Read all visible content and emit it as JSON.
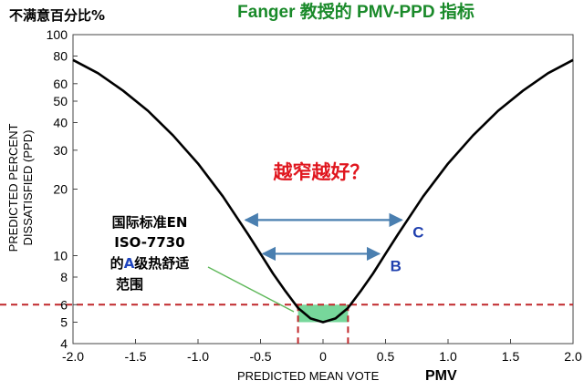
{
  "chart_data": {
    "type": "line",
    "title": "Fanger 教授的 PMV-PPD 指标",
    "corner_label": "不满意百分比%",
    "xlabel": "PREDICTED MEAN VOTE",
    "xlabel_suffix": "PMV",
    "ylabel": "PREDICTED PERCENT DISSATISFIED (PPD)",
    "ylabel_lines": [
      "PREDICTED PERCENT",
      "DISSATISFIED (PPD)"
    ],
    "xlim": [
      -2.0,
      2.0
    ],
    "ylim": [
      4,
      100
    ],
    "y_scale": "log",
    "x_ticks": [
      "-2.0",
      "-1.5",
      "-1.0",
      "-0.5",
      "0",
      "0.5",
      "1.0",
      "1.5",
      "2.0"
    ],
    "x_tick_values": [
      -2.0,
      -1.5,
      -1.0,
      -0.5,
      0,
      0.5,
      1.0,
      1.5,
      2.0
    ],
    "y_ticks": [
      "4",
      "5",
      "6",
      "8",
      "10",
      "20",
      "30",
      "40",
      "50",
      "60",
      "80",
      "100"
    ],
    "y_tick_values": [
      4,
      5,
      6,
      8,
      10,
      20,
      30,
      40,
      50,
      60,
      80,
      100
    ],
    "series": [
      {
        "x": [
          -2.0,
          -1.8,
          -1.6,
          -1.4,
          -1.2,
          -1.0,
          -0.8,
          -0.6,
          -0.5,
          -0.4,
          -0.3,
          -0.2,
          -0.1,
          0,
          0.1,
          0.2,
          0.3,
          0.4,
          0.5,
          0.6,
          0.8,
          1.0,
          1.2,
          1.4,
          1.6,
          1.8,
          2.0
        ],
        "y": [
          76.8,
          66.9,
          55.8,
          45.2,
          35.0,
          26.1,
          18.5,
          12.5,
          10.2,
          8.3,
          6.9,
          5.8,
          5.2,
          5.0,
          5.2,
          5.8,
          6.9,
          8.3,
          10.2,
          12.5,
          18.5,
          26.1,
          35.0,
          45.2,
          55.8,
          66.9,
          76.8
        ]
      }
    ],
    "reference_line": {
      "y": 6,
      "color": "#c0282b",
      "style": "dashed"
    },
    "comfort_band": {
      "x": [
        -0.2,
        0.2
      ],
      "y": [
        5,
        6
      ],
      "color": "#5fd08a"
    },
    "range_arrows": [
      {
        "label": "C",
        "x": [
          -0.62,
          0.63
        ],
        "y": 14.5
      },
      {
        "label": "B",
        "x": [
          -0.48,
          0.45
        ],
        "y": 10.2
      }
    ],
    "annotations": {
      "question": "越窄越好？",
      "box_lines": [
        "国际标准EN",
        "ISO-7730",
        "的",
        "A",
        "级热舒适",
        "范围"
      ]
    },
    "colors": {
      "curve": "#000000",
      "arrows": "#4a7fb0",
      "green": "#5fd08a",
      "red_dash": "#c0282b"
    }
  }
}
